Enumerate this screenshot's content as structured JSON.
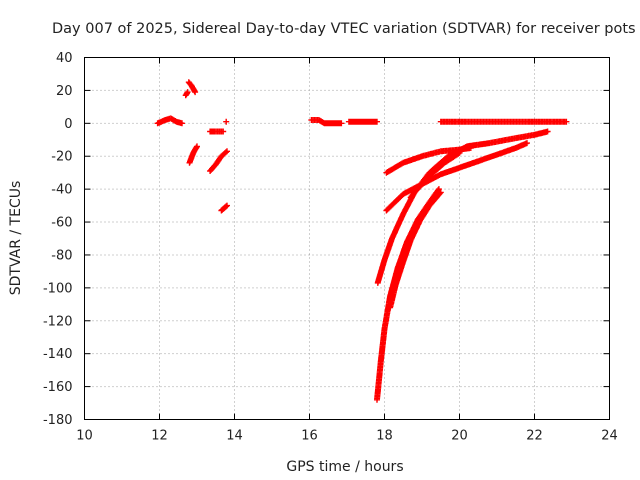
{
  "chart_data": {
    "type": "scatter",
    "title": "Day 007 of 2025, Sidereal Day-to-day VTEC variation (SDTVAR) for receiver pots",
    "xlabel": "GPS time / hours",
    "ylabel": "SDTVAR / TECUs",
    "xlim": [
      10,
      24
    ],
    "ylim": [
      -180,
      40
    ],
    "xticks": [
      10,
      12,
      14,
      16,
      18,
      20,
      22,
      24
    ],
    "yticks": [
      40,
      20,
      0,
      -20,
      -40,
      -60,
      -80,
      -100,
      -120,
      -140,
      -160,
      -180
    ],
    "grid": true,
    "marker": "+",
    "marker_color": "#ff0000",
    "series": [
      {
        "segments": [
          [
            [
              11.95,
              0
            ],
            [
              12.15,
              2
            ],
            [
              12.3,
              3
            ],
            [
              12.45,
              1
            ],
            [
              12.6,
              0
            ]
          ],
          [
            [
              12.7,
              17
            ],
            [
              12.75,
              19
            ]
          ],
          [
            [
              12.78,
              25
            ],
            [
              12.85,
              23
            ],
            [
              12.95,
              19
            ]
          ],
          [
            [
              12.8,
              -24
            ],
            [
              12.9,
              -18
            ],
            [
              13.0,
              -14
            ]
          ],
          [
            [
              13.35,
              -5
            ],
            [
              13.5,
              -5
            ],
            [
              13.7,
              -5
            ]
          ],
          [
            [
              13.78,
              1
            ]
          ],
          [
            [
              13.35,
              -29
            ],
            [
              13.5,
              -25
            ],
            [
              13.65,
              -20
            ],
            [
              13.8,
              -17
            ]
          ],
          [
            [
              13.65,
              -53
            ],
            [
              13.75,
              -51
            ],
            [
              13.8,
              -50
            ]
          ],
          [
            [
              16.05,
              2
            ],
            [
              16.25,
              2
            ],
            [
              16.4,
              0
            ],
            [
              16.6,
              0
            ],
            [
              16.85,
              0
            ]
          ],
          [
            [
              17.05,
              1
            ],
            [
              17.3,
              1
            ],
            [
              17.55,
              1
            ],
            [
              17.8,
              1
            ]
          ],
          [
            [
              19.5,
              1
            ],
            [
              20.2,
              1
            ],
            [
              21.0,
              1
            ],
            [
              21.8,
              1
            ],
            [
              22.5,
              1
            ],
            [
              22.85,
              1
            ]
          ],
          [
            [
              18.05,
              -30
            ],
            [
              18.5,
              -24
            ],
            [
              19.0,
              -20
            ],
            [
              19.5,
              -17
            ],
            [
              20.0,
              -16
            ],
            [
              20.3,
              -15
            ]
          ],
          [
            [
              18.05,
              -53
            ],
            [
              18.5,
              -43
            ],
            [
              19.0,
              -37
            ],
            [
              19.5,
              -31
            ],
            [
              20.0,
              -27
            ],
            [
              20.5,
              -23
            ],
            [
              21.0,
              -19
            ],
            [
              21.5,
              -15
            ],
            [
              21.8,
              -12
            ]
          ],
          [
            [
              18.7,
              -45
            ],
            [
              19.2,
              -30
            ],
            [
              19.7,
              -20
            ],
            [
              20.2,
              -14
            ],
            [
              20.8,
              -12
            ],
            [
              21.5,
              -9
            ],
            [
              22.0,
              -7
            ],
            [
              22.35,
              -5
            ]
          ],
          [
            [
              17.82,
              -97
            ],
            [
              18.0,
              -83
            ],
            [
              18.2,
              -70
            ],
            [
              18.5,
              -55
            ],
            [
              18.8,
              -42
            ],
            [
              19.2,
              -32
            ],
            [
              19.6,
              -24
            ],
            [
              20.0,
              -18
            ]
          ],
          [
            [
              17.8,
              -168
            ],
            [
              17.9,
              -145
            ],
            [
              18.0,
              -125
            ],
            [
              18.15,
              -105
            ],
            [
              18.35,
              -88
            ],
            [
              18.6,
              -72
            ],
            [
              18.9,
              -58
            ],
            [
              19.2,
              -48
            ],
            [
              19.45,
              -40
            ]
          ],
          [
            [
              18.15,
              -112
            ],
            [
              18.3,
              -98
            ],
            [
              18.5,
              -84
            ],
            [
              18.7,
              -71
            ],
            [
              18.95,
              -59
            ],
            [
              19.2,
              -50
            ],
            [
              19.5,
              -42
            ]
          ]
        ]
      }
    ]
  }
}
